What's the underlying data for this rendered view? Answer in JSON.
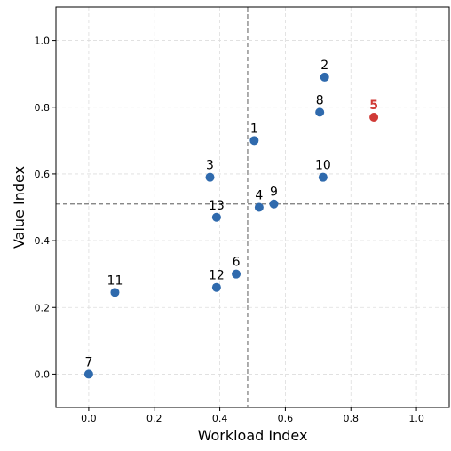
{
  "chart_data": {
    "type": "scatter",
    "title": "",
    "xlabel": "Workload Index",
    "ylabel": "Value Index",
    "xlim": [
      -0.1,
      1.1
    ],
    "ylim": [
      -0.1,
      1.1
    ],
    "x_ticks": [
      0.0,
      0.2,
      0.4,
      0.6,
      0.8,
      1.0
    ],
    "y_ticks": [
      0.0,
      0.2,
      0.4,
      0.6,
      0.8,
      1.0
    ],
    "x_tick_labels": [
      "0.0",
      "0.2",
      "0.4",
      "0.6",
      "0.8",
      "1.0"
    ],
    "y_tick_labels": [
      "0.0",
      "0.2",
      "0.4",
      "0.6",
      "0.8",
      "1.0"
    ],
    "grid": true,
    "reference_lines": {
      "vertical_x": 0.485,
      "horizontal_y": 0.51
    },
    "colors": {
      "default_point": "#2f6aad",
      "highlight_point": "#d03a36",
      "reference_line": "#777777",
      "grid": "#dddddd"
    },
    "points": [
      {
        "label": "1",
        "x": 0.505,
        "y": 0.7,
        "highlight": false
      },
      {
        "label": "2",
        "x": 0.72,
        "y": 0.89,
        "highlight": false
      },
      {
        "label": "3",
        "x": 0.37,
        "y": 0.59,
        "highlight": false
      },
      {
        "label": "4",
        "x": 0.52,
        "y": 0.5,
        "highlight": false
      },
      {
        "label": "5",
        "x": 0.87,
        "y": 0.77,
        "highlight": true
      },
      {
        "label": "6",
        "x": 0.45,
        "y": 0.3,
        "highlight": false
      },
      {
        "label": "7",
        "x": 0.0,
        "y": 0.0,
        "highlight": false
      },
      {
        "label": "8",
        "x": 0.705,
        "y": 0.785,
        "highlight": false
      },
      {
        "label": "9",
        "x": 0.565,
        "y": 0.51,
        "highlight": false
      },
      {
        "label": "10",
        "x": 0.715,
        "y": 0.59,
        "highlight": false
      },
      {
        "label": "11",
        "x": 0.08,
        "y": 0.245,
        "highlight": false
      },
      {
        "label": "12",
        "x": 0.39,
        "y": 0.26,
        "highlight": false
      },
      {
        "label": "13",
        "x": 0.39,
        "y": 0.47,
        "highlight": false
      }
    ]
  }
}
